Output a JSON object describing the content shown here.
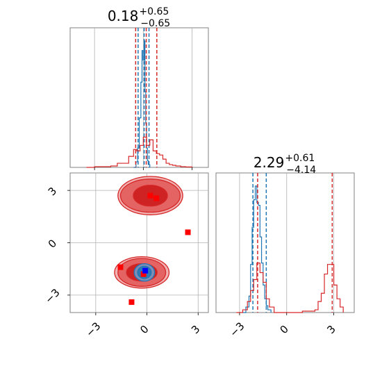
{
  "chart_data": [
    {
      "type": "line",
      "panel": "marginal",
      "parameter_index": 0,
      "title_value": "0.18",
      "title_upper": "+0.65",
      "title_lower": "−0.65",
      "xlim": [
        -4.5,
        4.0
      ],
      "xticks": [
        -3,
        0,
        3
      ],
      "grid": true,
      "series": [
        {
          "color": "#1f77b4",
          "style": "step",
          "x": [
            -0.6,
            -0.45,
            -0.35,
            -0.25,
            -0.15,
            -0.08,
            -0.02,
            0.05,
            0.1,
            0.15,
            0.2,
            0.25,
            0.3,
            0.4
          ],
          "y": [
            0.0,
            0.04,
            0.14,
            0.36,
            0.62,
            0.85,
            0.78,
            0.92,
            0.55,
            0.32,
            0.14,
            0.05,
            0.02,
            0.0
          ],
          "quantile_lines": [
            -0.32,
            0.05,
            0.35
          ]
        },
        {
          "color": "#d62728",
          "style": "step",
          "x": [
            -3.5,
            -3.0,
            -2.5,
            -2.0,
            -1.6,
            -1.2,
            -0.9,
            -0.6,
            -0.4,
            -0.2,
            0.0,
            0.2,
            0.4,
            0.6,
            0.8,
            1.0,
            1.2,
            1.4,
            1.6,
            1.8,
            2.0,
            2.3,
            2.6,
            3.0
          ],
          "y": [
            0.0,
            0.005,
            0.005,
            0.01,
            0.03,
            0.03,
            0.08,
            0.13,
            0.12,
            0.16,
            0.22,
            0.16,
            0.2,
            0.12,
            0.1,
            0.09,
            0.06,
            0.03,
            0.02,
            0.015,
            0.01,
            0.005,
            0.003,
            0.0
          ],
          "quantile_lines": [
            -0.47,
            0.18,
            0.83
          ]
        }
      ]
    },
    {
      "type": "line",
      "panel": "marginal",
      "parameter_index": 1,
      "title_value": "2.29",
      "title_upper": "+0.61",
      "title_lower": "−4.14",
      "xlim": [
        -4.5,
        4.3
      ],
      "xticks": [
        -3,
        0,
        3
      ],
      "grid": true,
      "series": [
        {
          "color": "#1f77b4",
          "style": "step",
          "x": [
            -2.8,
            -2.6,
            -2.4,
            -2.3,
            -2.2,
            -2.1,
            -2.0,
            -1.9,
            -1.8,
            -1.7,
            -1.6,
            -1.5,
            -1.4,
            -1.3,
            -1.2,
            -1.0
          ],
          "y": [
            0.0,
            0.04,
            0.12,
            0.35,
            0.62,
            0.82,
            0.92,
            0.8,
            0.78,
            0.55,
            0.36,
            0.2,
            0.1,
            0.05,
            0.02,
            0.0
          ],
          "quantile_lines": [
            -2.15,
            -1.3
          ]
        },
        {
          "color": "#d62728",
          "style": "step",
          "x": [
            -3.2,
            -2.8,
            -2.5,
            -2.3,
            -2.1,
            -1.9,
            -1.7,
            -1.5,
            -1.3,
            -1.1,
            -0.8,
            0.0,
            1.0,
            1.8,
            2.0,
            2.2,
            2.4,
            2.6,
            2.8,
            3.0,
            3.2,
            3.4,
            3.6
          ],
          "y": [
            0.0,
            0.02,
            0.08,
            0.16,
            0.24,
            0.36,
            0.29,
            0.22,
            0.1,
            0.04,
            0.0,
            0.0,
            0.01,
            0.02,
            0.08,
            0.14,
            0.28,
            0.35,
            0.35,
            0.2,
            0.1,
            0.04,
            0.0
          ],
          "quantile_lines": [
            -1.85,
            2.9
          ]
        }
      ]
    },
    {
      "type": "scatter",
      "panel": "joint",
      "xlim": [
        -4.5,
        3.6
      ],
      "ylim": [
        -4.0,
        4.0
      ],
      "xticks": [
        -3,
        0,
        3
      ],
      "yticks": [
        -3,
        0,
        3
      ],
      "grid": true,
      "contours": [
        {
          "color": "#d62728",
          "center": [
            0.2,
            2.7
          ],
          "radii": [
            [
              1.9,
              1.1
            ],
            [
              1.75,
              0.95
            ],
            [
              1.0,
              0.6
            ]
          ]
        },
        {
          "color": "#d62728",
          "center": [
            -0.3,
            -1.7
          ],
          "radii": [
            [
              1.6,
              0.9
            ],
            [
              1.4,
              0.8
            ],
            [
              0.9,
              0.5
            ]
          ]
        },
        {
          "color": "#1f77b4",
          "center": [
            -0.15,
            -1.7
          ],
          "radii": [
            [
              0.6,
              0.5
            ],
            [
              0.4,
              0.35
            ]
          ]
        }
      ],
      "markers": [
        {
          "color": "#ff0000",
          "x": [
            0.2,
            0.55,
            2.4,
            -1.55,
            -0.2,
            -0.9
          ],
          "y": [
            2.7,
            2.55,
            0.6,
            -1.4,
            -1.8,
            -3.4
          ]
        },
        {
          "color": "#0000ff",
          "x": [
            -0.1
          ],
          "y": [
            -1.6
          ]
        }
      ]
    }
  ]
}
